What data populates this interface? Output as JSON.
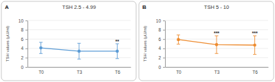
{
  "chart_data": [
    {
      "type": "line",
      "title": "TSH 2.5 - 4.99",
      "y_label": "TSH values (μU/ml)",
      "categories": [
        "T0",
        "T3",
        "T6"
      ],
      "series": [
        {
          "color": "#5b9bd5",
          "marker": "circle",
          "values": [
            4.1,
            3.4,
            3.4
          ],
          "errors": [
            1.2,
            1.7,
            1.6
          ]
        }
      ],
      "ylim": [
        0,
        10
      ],
      "yticks": [
        0,
        2,
        4,
        6,
        8,
        10
      ],
      "grid": true,
      "annotations": [
        {
          "text": "A"
        },
        {
          "x": "T6",
          "text": "**"
        }
      ]
    },
    {
      "type": "line",
      "title": "TSH 5 - 10",
      "y_label": "TSH values (μU/ml)",
      "categories": [
        "T0",
        "T3",
        "T6"
      ],
      "series": [
        {
          "color": "#ed8b2f",
          "marker": "circle",
          "values": [
            5.9,
            4.8,
            4.7
          ],
          "errors": [
            1.0,
            1.9,
            2.0
          ]
        }
      ],
      "ylim": [
        0,
        10
      ],
      "yticks": [
        0,
        2,
        4,
        6,
        8,
        10
      ],
      "grid": true,
      "annotations": [
        {
          "text": "B"
        },
        {
          "x": "T3",
          "text": "***"
        },
        {
          "x": "T6",
          "text": "***"
        }
      ]
    }
  ]
}
